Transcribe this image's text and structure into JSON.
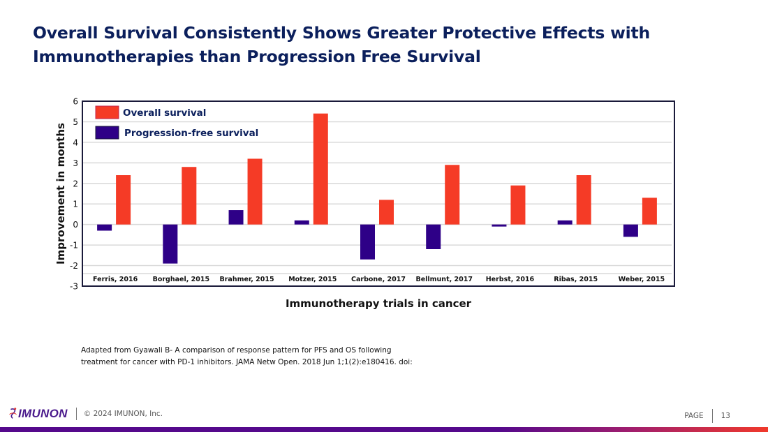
{
  "slide": {
    "title": "Overall Survival Consistently Shows Greater Protective Effects with Immunotherapies than Progression Free Survival",
    "citation_line1": "Adapted from Gyawali B- A comparison of response pattern for PFS and OS following",
    "citation_line2": "treatment for cancer with PD-1 inhibitors. JAMA Netw Open. 2018 Jun 1;1(2):e180416. doi:"
  },
  "footer": {
    "logo_text": "IMUNON",
    "copyright": "© 2024 IMUNON, Inc.",
    "page_label": "PAGE",
    "page_number": "13"
  },
  "colors": {
    "title": "#0b1f5c",
    "overall_survival": "#f53b26",
    "progression_free_survival": "#2e0087",
    "grid": "#d9d9d9",
    "frame": "#1a1a3a"
  },
  "chart_data": {
    "type": "bar",
    "title": "",
    "xlabel": "Immunotherapy trials in cancer",
    "ylabel": "Improvement in months",
    "ylim": [
      -3,
      6
    ],
    "yticks": [
      -3,
      -2,
      -1,
      0,
      1,
      2,
      3,
      4,
      5,
      6
    ],
    "grid": true,
    "legend_position": "top-left",
    "categories": [
      "Ferris, 2016",
      "Borghael, 2015",
      "Brahmer, 2015",
      "Motzer, 2015",
      "Carbone, 2017",
      "Bellmunt, 2017",
      "Herbst, 2016",
      "Ribas, 2015",
      "Weber, 2015"
    ],
    "series": [
      {
        "name": "Progression-free survival",
        "color": "#2e0087",
        "values": [
          -0.3,
          -1.9,
          0.7,
          0.2,
          -1.7,
          -1.2,
          -0.1,
          0.2,
          -0.6
        ]
      },
      {
        "name": "Overall survival",
        "color": "#f53b26",
        "values": [
          2.4,
          2.8,
          3.2,
          5.4,
          1.2,
          2.9,
          1.9,
          2.4,
          1.3
        ]
      }
    ],
    "legend_order": [
      "Overall survival",
      "Progression-free survival"
    ]
  }
}
